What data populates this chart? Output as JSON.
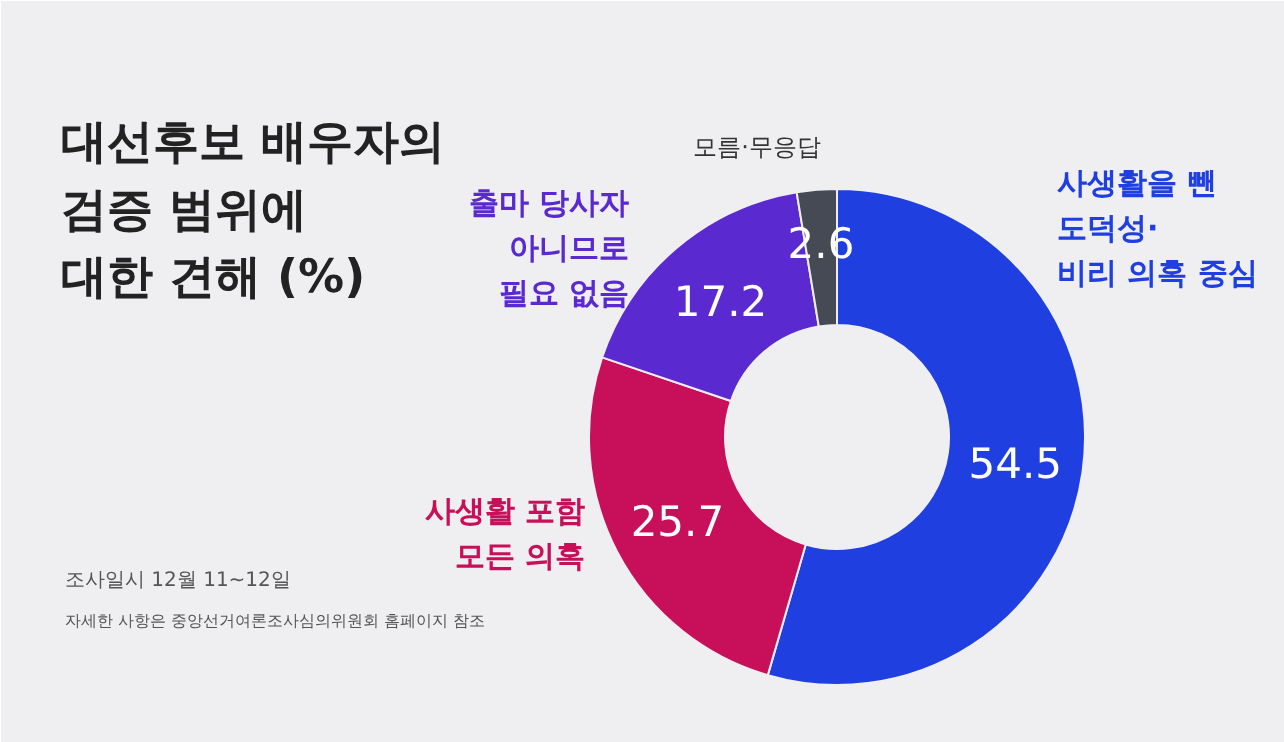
{
  "chart_data": {
    "type": "donut",
    "title": "대선후보 배우자의\n검증 범위에\n대한 견해 (%)",
    "categories": [
      "사생활을 뺀\n도덕성·\n비리 의혹 중심",
      "사생활 포함\n모든 의혹",
      "출마 당사자\n아니므로\n필요 없음",
      "모름·무응답"
    ],
    "values": [
      54.5,
      25.7,
      17.2,
      2.6
    ],
    "colors": [
      "#1f3fe0",
      "#c8105a",
      "#5a2ad0",
      "#454a55"
    ],
    "data_labels": true,
    "annotations": [
      "조사일시 12월 11~12일",
      "자세한 사항은 중앙선거여론조사심의위원회 홈페이지 참조"
    ]
  }
}
